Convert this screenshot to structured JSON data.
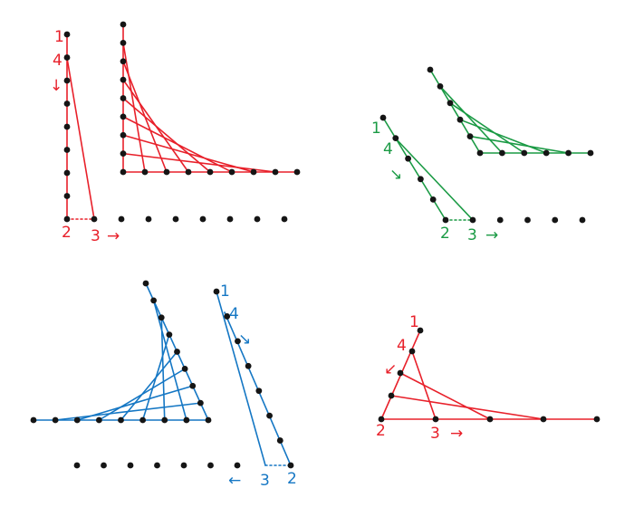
{
  "colors": {
    "red": "#e8202a",
    "green": "#1a9a44",
    "blue": "#1577c4",
    "dot": "#151515"
  },
  "panels": [
    {
      "id": "top-left",
      "color": "red",
      "labels": {
        "p1": "1",
        "p4": "4",
        "p2": "2",
        "p3": "3"
      },
      "arrow_down": "↓",
      "arrow_right": "→"
    },
    {
      "id": "top-right",
      "color": "green",
      "labels": {
        "p1": "1",
        "p4": "4",
        "p2": "2",
        "p3": "3"
      },
      "arrow_down": "↘",
      "arrow_right": "→"
    },
    {
      "id": "bottom-left",
      "color": "blue",
      "labels": {
        "p1": "1",
        "p4": "4",
        "p2": "2",
        "p3": "3"
      },
      "arrow_down": "↘",
      "arrow_left": "←"
    },
    {
      "id": "bottom-right",
      "color": "red",
      "labels": {
        "p1": "1",
        "p4": "4",
        "p2": "2",
        "p3": "3"
      },
      "arrow_down": "↙",
      "arrow_right": "→"
    }
  ]
}
